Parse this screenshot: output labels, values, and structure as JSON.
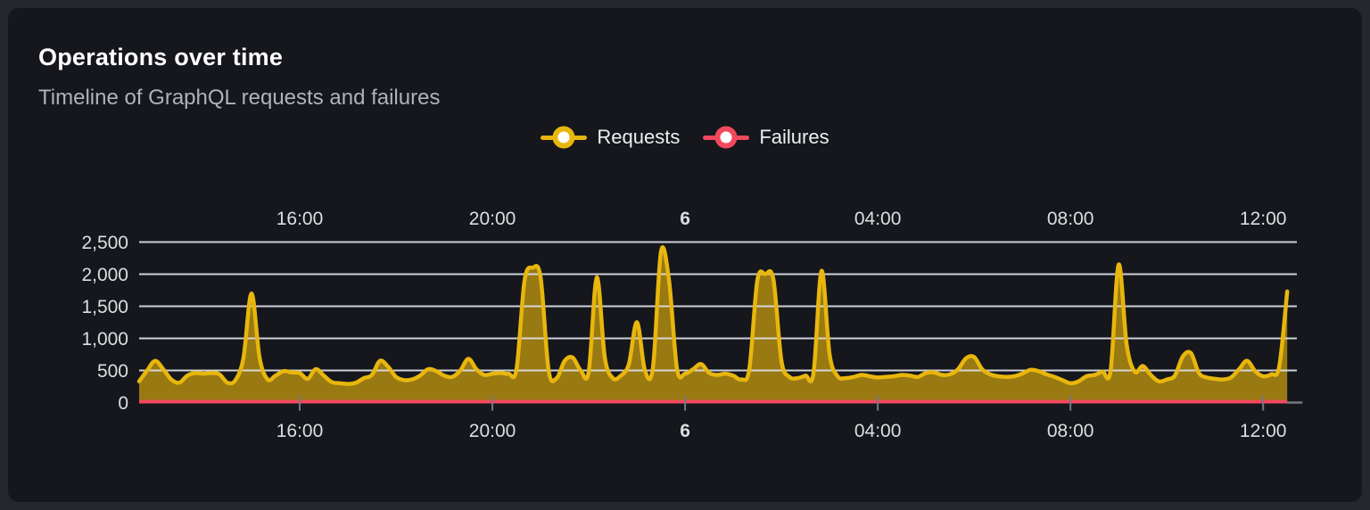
{
  "panel": {
    "title": "Operations over time",
    "subtitle": "Timeline of GraphQL requests and failures"
  },
  "legend": {
    "items": [
      {
        "label": "Requests",
        "color": "#E8B60D"
      },
      {
        "label": "Failures",
        "color": "#F2495C"
      }
    ]
  },
  "colors": {
    "background": "#25272c",
    "panel_background": "#15171c",
    "grid_line": "#dde1e8",
    "axis_text": "#dcdee1",
    "tick_mark": "#75797f",
    "requests_line": "#E8B60D",
    "failures_line": "#F2495C"
  },
  "chart_data": {
    "type": "area",
    "title": "Operations over time",
    "xlabel": "",
    "ylabel": "",
    "grid": true,
    "legend_position": "top-center",
    "x_axis": {
      "unit": "hours-since-midnight-day-5",
      "start_hour": 12.6667,
      "end_hour": 36.7,
      "ticks": [
        {
          "hour": 16,
          "label": "16:00",
          "bold": false
        },
        {
          "hour": 20,
          "label": "20:00",
          "bold": false
        },
        {
          "hour": 24,
          "label": "6",
          "bold": true
        },
        {
          "hour": 28,
          "label": "04:00",
          "bold": false
        },
        {
          "hour": 32,
          "label": "08:00",
          "bold": false
        },
        {
          "hour": 36,
          "label": "12:00",
          "bold": false
        }
      ],
      "mirrored_labels": true
    },
    "y_axis": {
      "min": 0,
      "max": 2500,
      "tick_step": 500,
      "tick_labels": [
        "0",
        "500",
        "1,000",
        "1,500",
        "2,000",
        "2,500"
      ]
    },
    "series": [
      {
        "name": "Requests",
        "color": "#E8B60D",
        "fill_opacity": 0.62,
        "line_width": 4.5,
        "start_hour": 12.6667,
        "step_hours": 0.1666667,
        "values": [
          330,
          500,
          650,
          520,
          360,
          310,
          420,
          460,
          450,
          460,
          440,
          310,
          350,
          700,
          1700,
          700,
          360,
          420,
          490,
          470,
          460,
          370,
          520,
          420,
          320,
          300,
          290,
          310,
          380,
          430,
          650,
          560,
          400,
          350,
          360,
          420,
          520,
          490,
          420,
          400,
          500,
          680,
          520,
          430,
          450,
          460,
          450,
          520,
          1900,
          2100,
          1950,
          500,
          380,
          650,
          700,
          500,
          480,
          1950,
          700,
          380,
          420,
          600,
          1250,
          500,
          550,
          2350,
          1900,
          520,
          450,
          520,
          600,
          460,
          430,
          450,
          420,
          360,
          520,
          1900,
          2000,
          1920,
          650,
          400,
          380,
          420,
          460,
          2050,
          750,
          410,
          380,
          400,
          430,
          410,
          390,
          400,
          410,
          430,
          420,
          400,
          460,
          470,
          430,
          440,
          520,
          690,
          710,
          520,
          440,
          410,
          400,
          410,
          450,
          510,
          490,
          440,
          400,
          350,
          300,
          330,
          410,
          430,
          480,
          500,
          2150,
          900,
          480,
          570,
          430,
          330,
          360,
          420,
          720,
          770,
          460,
          390,
          370,
          360,
          390,
          520,
          650,
          490,
          410,
          440,
          560,
          1730
        ]
      },
      {
        "name": "Failures",
        "color": "#F2495C",
        "line_width": 4,
        "constant_value": 0,
        "start_hour": 12.6667,
        "end_hour": 36.5
      }
    ]
  }
}
